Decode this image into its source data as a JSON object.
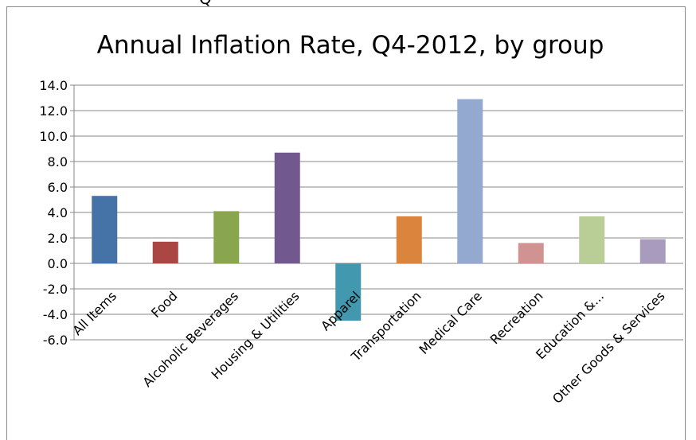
{
  "top_strip_text": "Q",
  "chart_data": {
    "type": "bar",
    "title": "Annual Inflation Rate, Q4-2012, by group",
    "categories": [
      "All Items",
      "Food",
      "Alcoholic Beverages",
      "Housing & Utilities",
      "Apparel",
      "Transportation",
      "Medical Care",
      "Recreation",
      "Education &...",
      "Other Goods & Services"
    ],
    "values": [
      5.3,
      1.7,
      4.1,
      8.7,
      -4.5,
      3.7,
      12.9,
      1.6,
      3.7,
      1.9
    ],
    "colors": [
      "#4572a7",
      "#aa4643",
      "#89a54e",
      "#71588f",
      "#4198af",
      "#db843d",
      "#93a9cf",
      "#d19392",
      "#b9cd96",
      "#a99bbd"
    ],
    "ylim": [
      -6.0,
      14.0
    ],
    "yticks": [
      "14.0",
      "12.0",
      "10.0",
      "8.0",
      "6.0",
      "4.0",
      "2.0",
      "0.0",
      "-2.0",
      "-4.0",
      "-6.0"
    ],
    "xlabel": "",
    "ylabel": "",
    "grid": true,
    "legend": "none"
  }
}
